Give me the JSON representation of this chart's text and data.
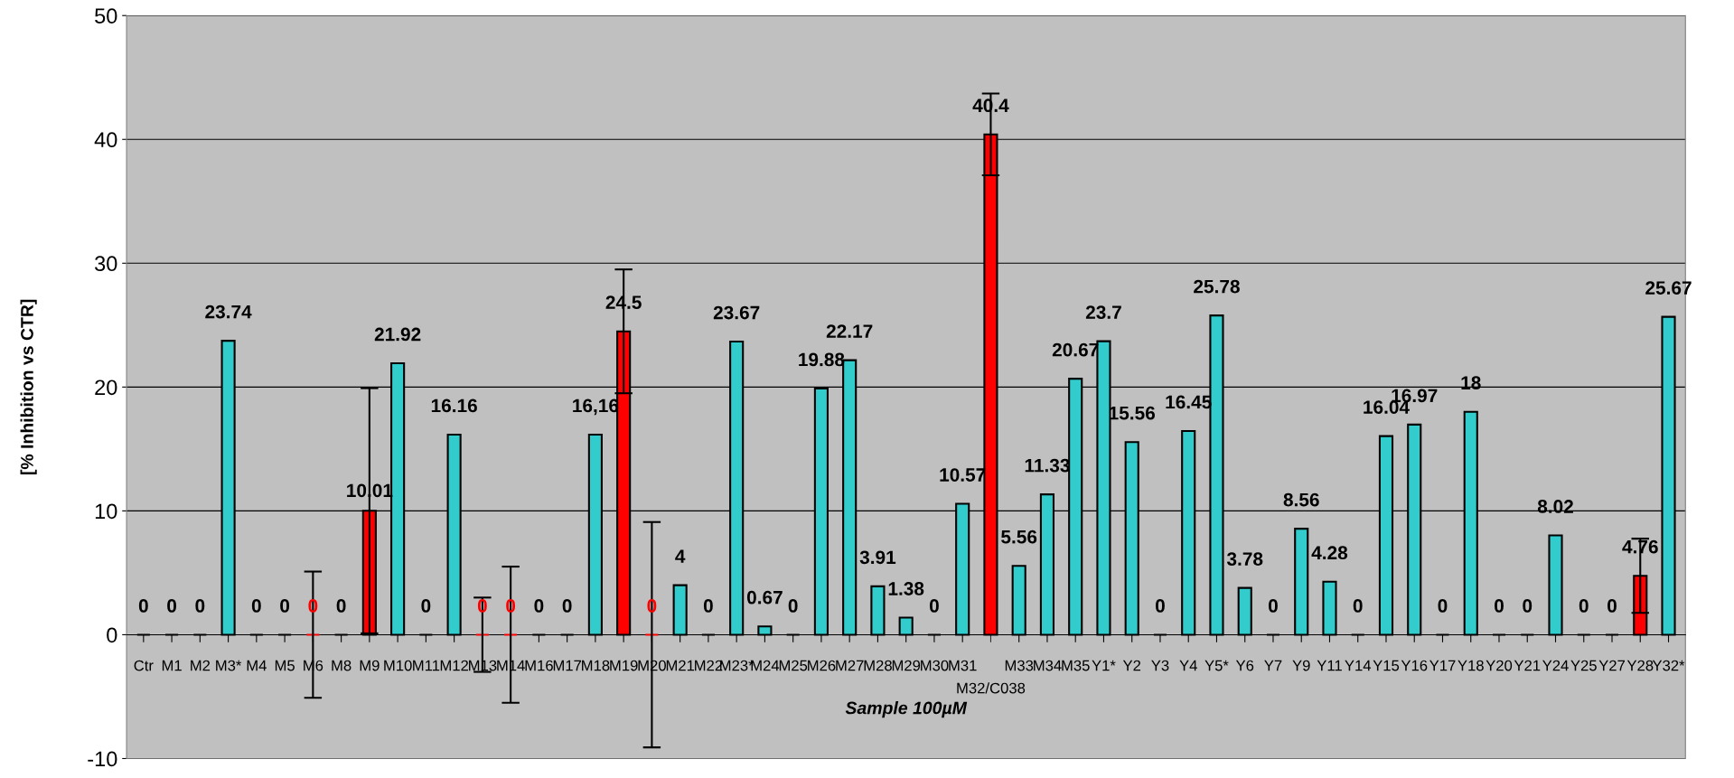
{
  "chart_data": {
    "type": "bar",
    "ylabel": "[% Inhibition vs CTR]",
    "xlabel": "Sample 100µM",
    "categories": [
      "Ctr",
      "M1",
      "M2",
      "M3*",
      "M4",
      "M5",
      "M6",
      "M8",
      "M9",
      "M10",
      "M11",
      "M12",
      "M13",
      "M14",
      "M16",
      "M17",
      "M18",
      "M19",
      "M20",
      "M21",
      "M22",
      "M23*",
      "M24",
      "M25",
      "M26",
      "M27",
      "M28",
      "M29",
      "M30",
      "M31",
      "M32/C038",
      "M33",
      "M34",
      "M35",
      "Y1*",
      "Y2",
      "Y3",
      "Y4",
      "Y5*",
      "Y6",
      "Y7",
      "Y9",
      "Y11",
      "Y14",
      "Y15",
      "Y16",
      "Y17",
      "Y18",
      "Y20",
      "Y21",
      "Y24",
      "Y25",
      "Y27",
      "Y28",
      "Y32*"
    ],
    "values": [
      0,
      0,
      0,
      23.74,
      0,
      0,
      0,
      0,
      10.01,
      21.92,
      0,
      16.16,
      0,
      0,
      0,
      0,
      16.16,
      24.5,
      0,
      4,
      0,
      23.67,
      0.67,
      0,
      19.88,
      22.17,
      3.91,
      1.38,
      0,
      10.57,
      40.4,
      5.56,
      11.33,
      20.67,
      23.7,
      15.56,
      0,
      16.45,
      25.78,
      3.78,
      0,
      8.56,
      4.28,
      0,
      16.04,
      16.97,
      0,
      18,
      0,
      0,
      8.02,
      0,
      0,
      4.76,
      25.67
    ],
    "value_labels": [
      "0",
      "0",
      "0",
      "23.74",
      "0",
      "0",
      "0",
      "0",
      "10.01",
      "21.92",
      "0",
      "16.16",
      "0",
      "0",
      "0",
      "0",
      "16,16",
      "24.5",
      "0",
      "4",
      "0",
      "23.67",
      "0.67",
      "0",
      "19.88",
      "22.17",
      "3.91",
      "1.38",
      "0",
      "10.57",
      "40.4",
      "5.56",
      "11.33",
      "20.67",
      "23.7",
      "15.56",
      "0",
      "16.45",
      "25.78",
      "3.78",
      "0",
      "8.56",
      "4.28",
      "0",
      "16.04",
      "16.97",
      "0",
      "18",
      "0",
      "0",
      "8.02",
      "0",
      "0",
      "4.76",
      "25.67"
    ],
    "colors": [
      "#000000",
      "#000000",
      "#000000",
      "#33cccc",
      "#000000",
      "#000000",
      "#ff0000",
      "#000000",
      "#ff0000",
      "#33cccc",
      "#000000",
      "#33cccc",
      "#ff0000",
      "#ff0000",
      "#000000",
      "#000000",
      "#33cccc",
      "#ff0000",
      "#ff0000",
      "#33cccc",
      "#000000",
      "#33cccc",
      "#33cccc",
      "#000000",
      "#33cccc",
      "#33cccc",
      "#33cccc",
      "#33cccc",
      "#000000",
      "#33cccc",
      "#ff0000",
      "#33cccc",
      "#33cccc",
      "#33cccc",
      "#33cccc",
      "#33cccc",
      "#000000",
      "#33cccc",
      "#33cccc",
      "#33cccc",
      "#000000",
      "#33cccc",
      "#33cccc",
      "#000000",
      "#33cccc",
      "#33cccc",
      "#000000",
      "#33cccc",
      "#000000",
      "#000000",
      "#33cccc",
      "#000000",
      "#000000",
      "#ff0000",
      "#33cccc"
    ],
    "errors": [
      null,
      null,
      null,
      null,
      null,
      null,
      5.1,
      null,
      9.9,
      null,
      null,
      null,
      3,
      5.5,
      null,
      null,
      null,
      5,
      9.1,
      null,
      null,
      null,
      null,
      null,
      null,
      null,
      null,
      null,
      null,
      null,
      3.3,
      null,
      null,
      null,
      null,
      null,
      null,
      null,
      null,
      null,
      null,
      null,
      null,
      null,
      null,
      null,
      null,
      null,
      null,
      null,
      null,
      null,
      null,
      3,
      null
    ],
    "ylim": [
      -10,
      50
    ],
    "yticks": [
      -10,
      0,
      10,
      20,
      30,
      40,
      50
    ],
    "grid": "y",
    "legend": false
  }
}
